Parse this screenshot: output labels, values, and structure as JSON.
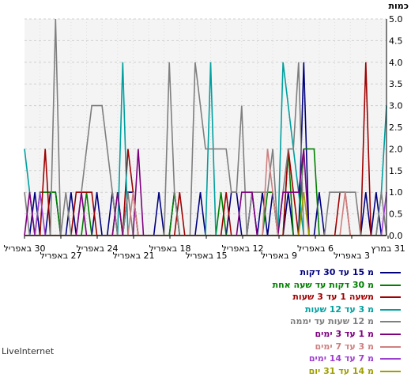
{
  "chart_data": {
    "type": "line",
    "ylabel": "כמות",
    "ylim": [
      0,
      5
    ],
    "yticks": [
      "0.0",
      "0.5",
      "1.0",
      "1.5",
      "2.0",
      "2.5",
      "3.0",
      "3.5",
      "4.0",
      "4.5",
      "5.0"
    ],
    "xticks_low": [
      "30 באפריל",
      "24 באפריל",
      "18 באפריל",
      "12 באפריל",
      "6 באפריל",
      "31 במרץ"
    ],
    "xticks_high": [
      "27 באפריל",
      "21 באפריל",
      "15 באפריל",
      "9 באפריל",
      "3 באפריל"
    ],
    "series": [
      {
        "name": "מ 15 עד 30 דקות",
        "color": "#00007f",
        "values": [
          0,
          0,
          1,
          0,
          0,
          1,
          1,
          0,
          0,
          1,
          0,
          0,
          0,
          0,
          1,
          0,
          0,
          1,
          0,
          0,
          1,
          1,
          0,
          0,
          0,
          0,
          1,
          0,
          0,
          1,
          0,
          0,
          0,
          0,
          1,
          0,
          0,
          0,
          0,
          0,
          1,
          1,
          0,
          0,
          1,
          0,
          1,
          0,
          1,
          0,
          0,
          1,
          0,
          0,
          4,
          0,
          0,
          1,
          0,
          0,
          0,
          0,
          0,
          0,
          0,
          0,
          1,
          0,
          1,
          0,
          0
        ]
      },
      {
        "name": "מ 30 דקות עד שעה אחת",
        "color": "#007f00",
        "values": [
          0,
          0,
          0,
          1,
          1,
          1,
          1,
          0,
          0,
          0,
          0,
          0,
          1,
          0,
          0,
          0,
          0,
          0,
          1,
          0,
          0,
          0,
          0,
          0,
          0,
          0,
          0,
          0,
          0,
          1,
          0,
          0,
          0,
          0,
          0,
          0,
          0,
          0,
          1,
          0,
          0,
          0,
          0,
          0,
          0,
          0,
          0,
          1,
          1,
          0,
          0,
          2,
          0,
          0,
          2,
          2,
          2,
          0,
          0,
          0,
          0,
          0,
          0,
          0,
          0,
          0,
          0,
          0,
          0,
          0,
          0
        ]
      },
      {
        "name": "משעה 1 עד 3 שעות",
        "color": "#9f0000",
        "values": [
          0,
          0,
          0,
          0,
          2,
          0,
          0,
          0,
          0,
          0,
          1,
          1,
          1,
          1,
          0,
          0,
          0,
          0,
          0,
          0,
          2,
          1,
          0,
          0,
          0,
          0,
          0,
          0,
          0,
          0,
          1,
          0,
          0,
          0,
          0,
          0,
          0,
          0,
          0,
          1,
          0,
          0,
          0,
          0,
          0,
          0,
          0,
          0,
          0,
          0,
          0,
          2,
          1,
          0,
          0,
          0,
          0,
          0,
          0,
          0,
          0,
          1,
          1,
          0,
          0,
          0,
          4,
          0,
          0,
          0,
          0
        ]
      },
      {
        "name": "מ 3 עד 12 שעות",
        "color": "#009f9f",
        "values": [
          2,
          1,
          0,
          0,
          0,
          0,
          0,
          0,
          0,
          0,
          0,
          0,
          0,
          0,
          0,
          0,
          0,
          0,
          0,
          4,
          0,
          0,
          0,
          0,
          0,
          0,
          0,
          0,
          0,
          0,
          0,
          0,
          0,
          0,
          0,
          0,
          4,
          0,
          0,
          0,
          0,
          0,
          0,
          0,
          0,
          0,
          0,
          0,
          0,
          0,
          4,
          3,
          2,
          1,
          0,
          0,
          0,
          0,
          0,
          0,
          0,
          0,
          0,
          0,
          0,
          0,
          0,
          0,
          0,
          1,
          3
        ]
      },
      {
        "name": "מ 12 שעות עד יממה",
        "color": "#7f7f7f",
        "values": [
          1,
          0,
          0,
          0,
          0,
          0,
          5,
          0,
          1,
          0,
          0,
          1,
          2,
          3,
          3,
          3,
          2,
          1,
          0,
          0,
          1,
          0,
          0,
          0,
          0,
          0,
          0,
          0,
          4,
          1,
          0,
          0,
          0,
          4,
          3,
          2,
          2,
          2,
          2,
          2,
          1,
          1,
          3,
          0,
          1,
          1,
          1,
          1,
          2,
          0,
          1,
          2,
          2,
          4,
          0,
          0,
          0,
          0,
          0,
          1,
          1,
          1,
          1,
          1,
          1,
          0,
          0,
          0,
          0,
          1,
          0
        ]
      },
      {
        "name": "מ 1 עד 3 ימים",
        "color": "#7f007f",
        "values": [
          0,
          1,
          0,
          0,
          0,
          0,
          0,
          0,
          0,
          0,
          0,
          1,
          0,
          0,
          0,
          0,
          0,
          0,
          1,
          0,
          0,
          0,
          2,
          0,
          0,
          0,
          0,
          0,
          0,
          0,
          0,
          0,
          0,
          0,
          0,
          0,
          0,
          0,
          0,
          0,
          0,
          0,
          1,
          1,
          1,
          0,
          0,
          0,
          0,
          0,
          1,
          1,
          1,
          1,
          2,
          0,
          0,
          0,
          0,
          0,
          0,
          0,
          0,
          0,
          0,
          0,
          0,
          0,
          0,
          0,
          0
        ]
      },
      {
        "name": "מ 3 עד 7 ימים",
        "color": "#cf7f7f",
        "values": [
          0,
          0,
          0,
          0,
          0,
          0,
          0,
          0,
          0,
          0,
          0,
          0,
          0,
          0,
          0,
          0,
          0,
          0,
          0,
          0,
          0,
          1,
          0,
          0,
          0,
          0,
          0,
          0,
          0,
          0,
          0,
          0,
          0,
          0,
          0,
          0,
          0,
          0,
          0,
          0,
          0,
          0,
          0,
          0,
          0,
          0,
          0,
          2,
          1,
          0,
          0,
          0,
          0,
          0,
          0,
          0,
          0,
          0,
          0,
          0,
          0,
          0,
          1,
          0,
          0,
          0,
          0,
          0,
          0,
          0,
          0
        ]
      },
      {
        "name": "מ 7 עד 14 ימים",
        "color": "#9f3fcf",
        "values": [
          0,
          0,
          0,
          1,
          0,
          0,
          0,
          0,
          0,
          0,
          0,
          0,
          0,
          0,
          0,
          0,
          0,
          0,
          0,
          0,
          0,
          0,
          0,
          0,
          0,
          0,
          0,
          0,
          0,
          0,
          0,
          0,
          0,
          0,
          0,
          0,
          0,
          0,
          0,
          0,
          0,
          0,
          0,
          0,
          0,
          0,
          0,
          0,
          0,
          0,
          0,
          0,
          0,
          0,
          0,
          0,
          0,
          0,
          0,
          0,
          0,
          0,
          0,
          0,
          0,
          0,
          0,
          0,
          0,
          0,
          1
        ]
      },
      {
        "name": "מ 14 עד 31 יום",
        "color": "#9f9f00",
        "values": [
          0,
          0,
          0,
          0,
          0,
          0,
          0,
          0,
          0,
          0,
          0,
          0,
          0,
          0,
          0,
          0,
          0,
          0,
          0,
          0,
          0,
          0,
          0,
          0,
          0,
          0,
          0,
          0,
          0,
          0,
          0,
          0,
          0,
          0,
          0,
          0,
          0,
          0,
          0,
          0,
          0,
          0,
          0,
          0,
          0,
          0,
          0,
          0,
          0,
          0,
          0,
          0,
          0,
          0,
          1,
          0,
          0,
          0,
          0,
          0,
          0,
          0,
          0,
          0,
          0,
          0,
          0,
          0,
          0,
          0,
          0
        ]
      }
    ]
  },
  "brand": "LiveInternet"
}
